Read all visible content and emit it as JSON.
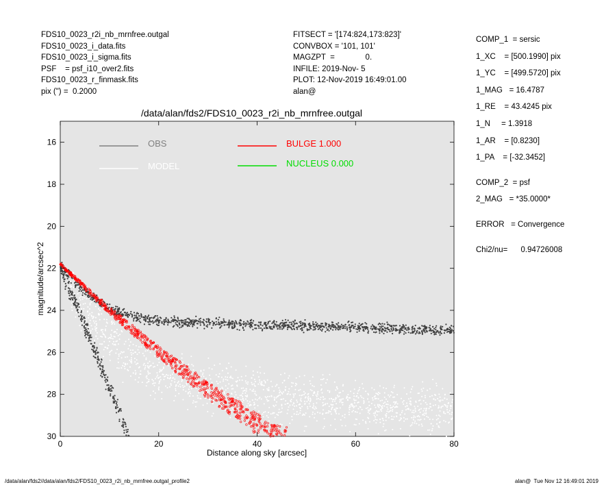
{
  "header": {
    "left_lines": [
      "FDS10_0023_r2i_nb_mrnfree.outgal",
      "FDS10_0023_i_data.fits",
      "FDS10_0023_i_sigma.fits",
      "PSF    = psf_i10_over2.fits",
      "FDS10_0023_r_finmask.fits",
      "pix (\") =  0.2000"
    ],
    "middle_lines": [
      "FITSECT = '[174:824,173:823]'",
      "CONVBOX = '101, 101'",
      "MAGZPT  =              0.",
      "INFILE: 2019-Nov- 5",
      "PLOT: 12-Nov-2019 16:49:01.00",
      "alan@"
    ]
  },
  "params": {
    "group1": [
      "COMP_1  = sersic",
      "1_XC    = [500.1990] pix",
      "1_YC    = [499.5720] pix",
      "1_MAG   = 16.4787",
      "1_RE    = 43.4245 pix",
      "1_N     = 1.3918",
      "1_AR    = [0.8230]",
      "1_PA    = [-32.3452]"
    ],
    "group2": [
      "COMP_2  = psf",
      "2_MAG   = *35.0000*"
    ],
    "group3": [
      "ERROR   = Convergence"
    ],
    "group4": [
      "Chi2/nu=      0.94726008"
    ]
  },
  "footer": {
    "left": "/data/alan/fds2//data/alan/fds2/FDS10_0023_r2i_nb_mrnfree.outgal_profile2",
    "right": "alan@  Tue Nov 12 16:49:01 2019"
  },
  "chart_data": {
    "type": "scatter",
    "title": "/data/alan/fds2/FDS10_0023_r2i_nb_mrnfree.outgal",
    "xlabel": "Distance along sky [arcsec]",
    "ylabel": "magnitude/arcsec^2",
    "xlim": [
      0,
      80
    ],
    "ylim": [
      30,
      15
    ],
    "y_inverted": true,
    "xticks": [
      0,
      20,
      40,
      60,
      80
    ],
    "yticks": [
      16,
      18,
      20,
      22,
      24,
      26,
      28,
      30
    ],
    "background": "#e5e5e5",
    "legend": [
      {
        "label": "OBS",
        "color": "#808080"
      },
      {
        "label": "MODEL",
        "color": "#ffffff"
      },
      {
        "label": "BULGE  1.000",
        "color": "#ff0000"
      },
      {
        "label": "NUCLEUS  0.000",
        "color": "#00dd00"
      }
    ],
    "series": [
      {
        "name": "OBS",
        "color": "#404040",
        "x": [
          0,
          2,
          4,
          6,
          8,
          10,
          12,
          15,
          20,
          30,
          40,
          50,
          60,
          70,
          80
        ],
        "y": [
          21.9,
          22.4,
          22.9,
          23.3,
          23.6,
          23.9,
          24.1,
          24.3,
          24.5,
          24.6,
          24.7,
          24.75,
          24.8,
          24.9,
          25.0
        ]
      },
      {
        "name": "MODEL",
        "color": "#ffffff",
        "x": [
          0,
          5,
          10,
          15,
          20,
          30,
          40,
          50,
          60,
          70,
          80
        ],
        "y": [
          22.0,
          24.0,
          25.5,
          26.5,
          27.0,
          27.6,
          28.0,
          28.3,
          28.5,
          28.7,
          28.8
        ]
      },
      {
        "name": "BULGE  1.000",
        "color": "#ff0000",
        "x": [
          0,
          5,
          10,
          15,
          20,
          25,
          30,
          35,
          40,
          45
        ],
        "y": [
          21.8,
          22.9,
          24.0,
          25.0,
          26.0,
          26.9,
          27.8,
          28.6,
          29.4,
          30.1
        ]
      }
    ]
  }
}
